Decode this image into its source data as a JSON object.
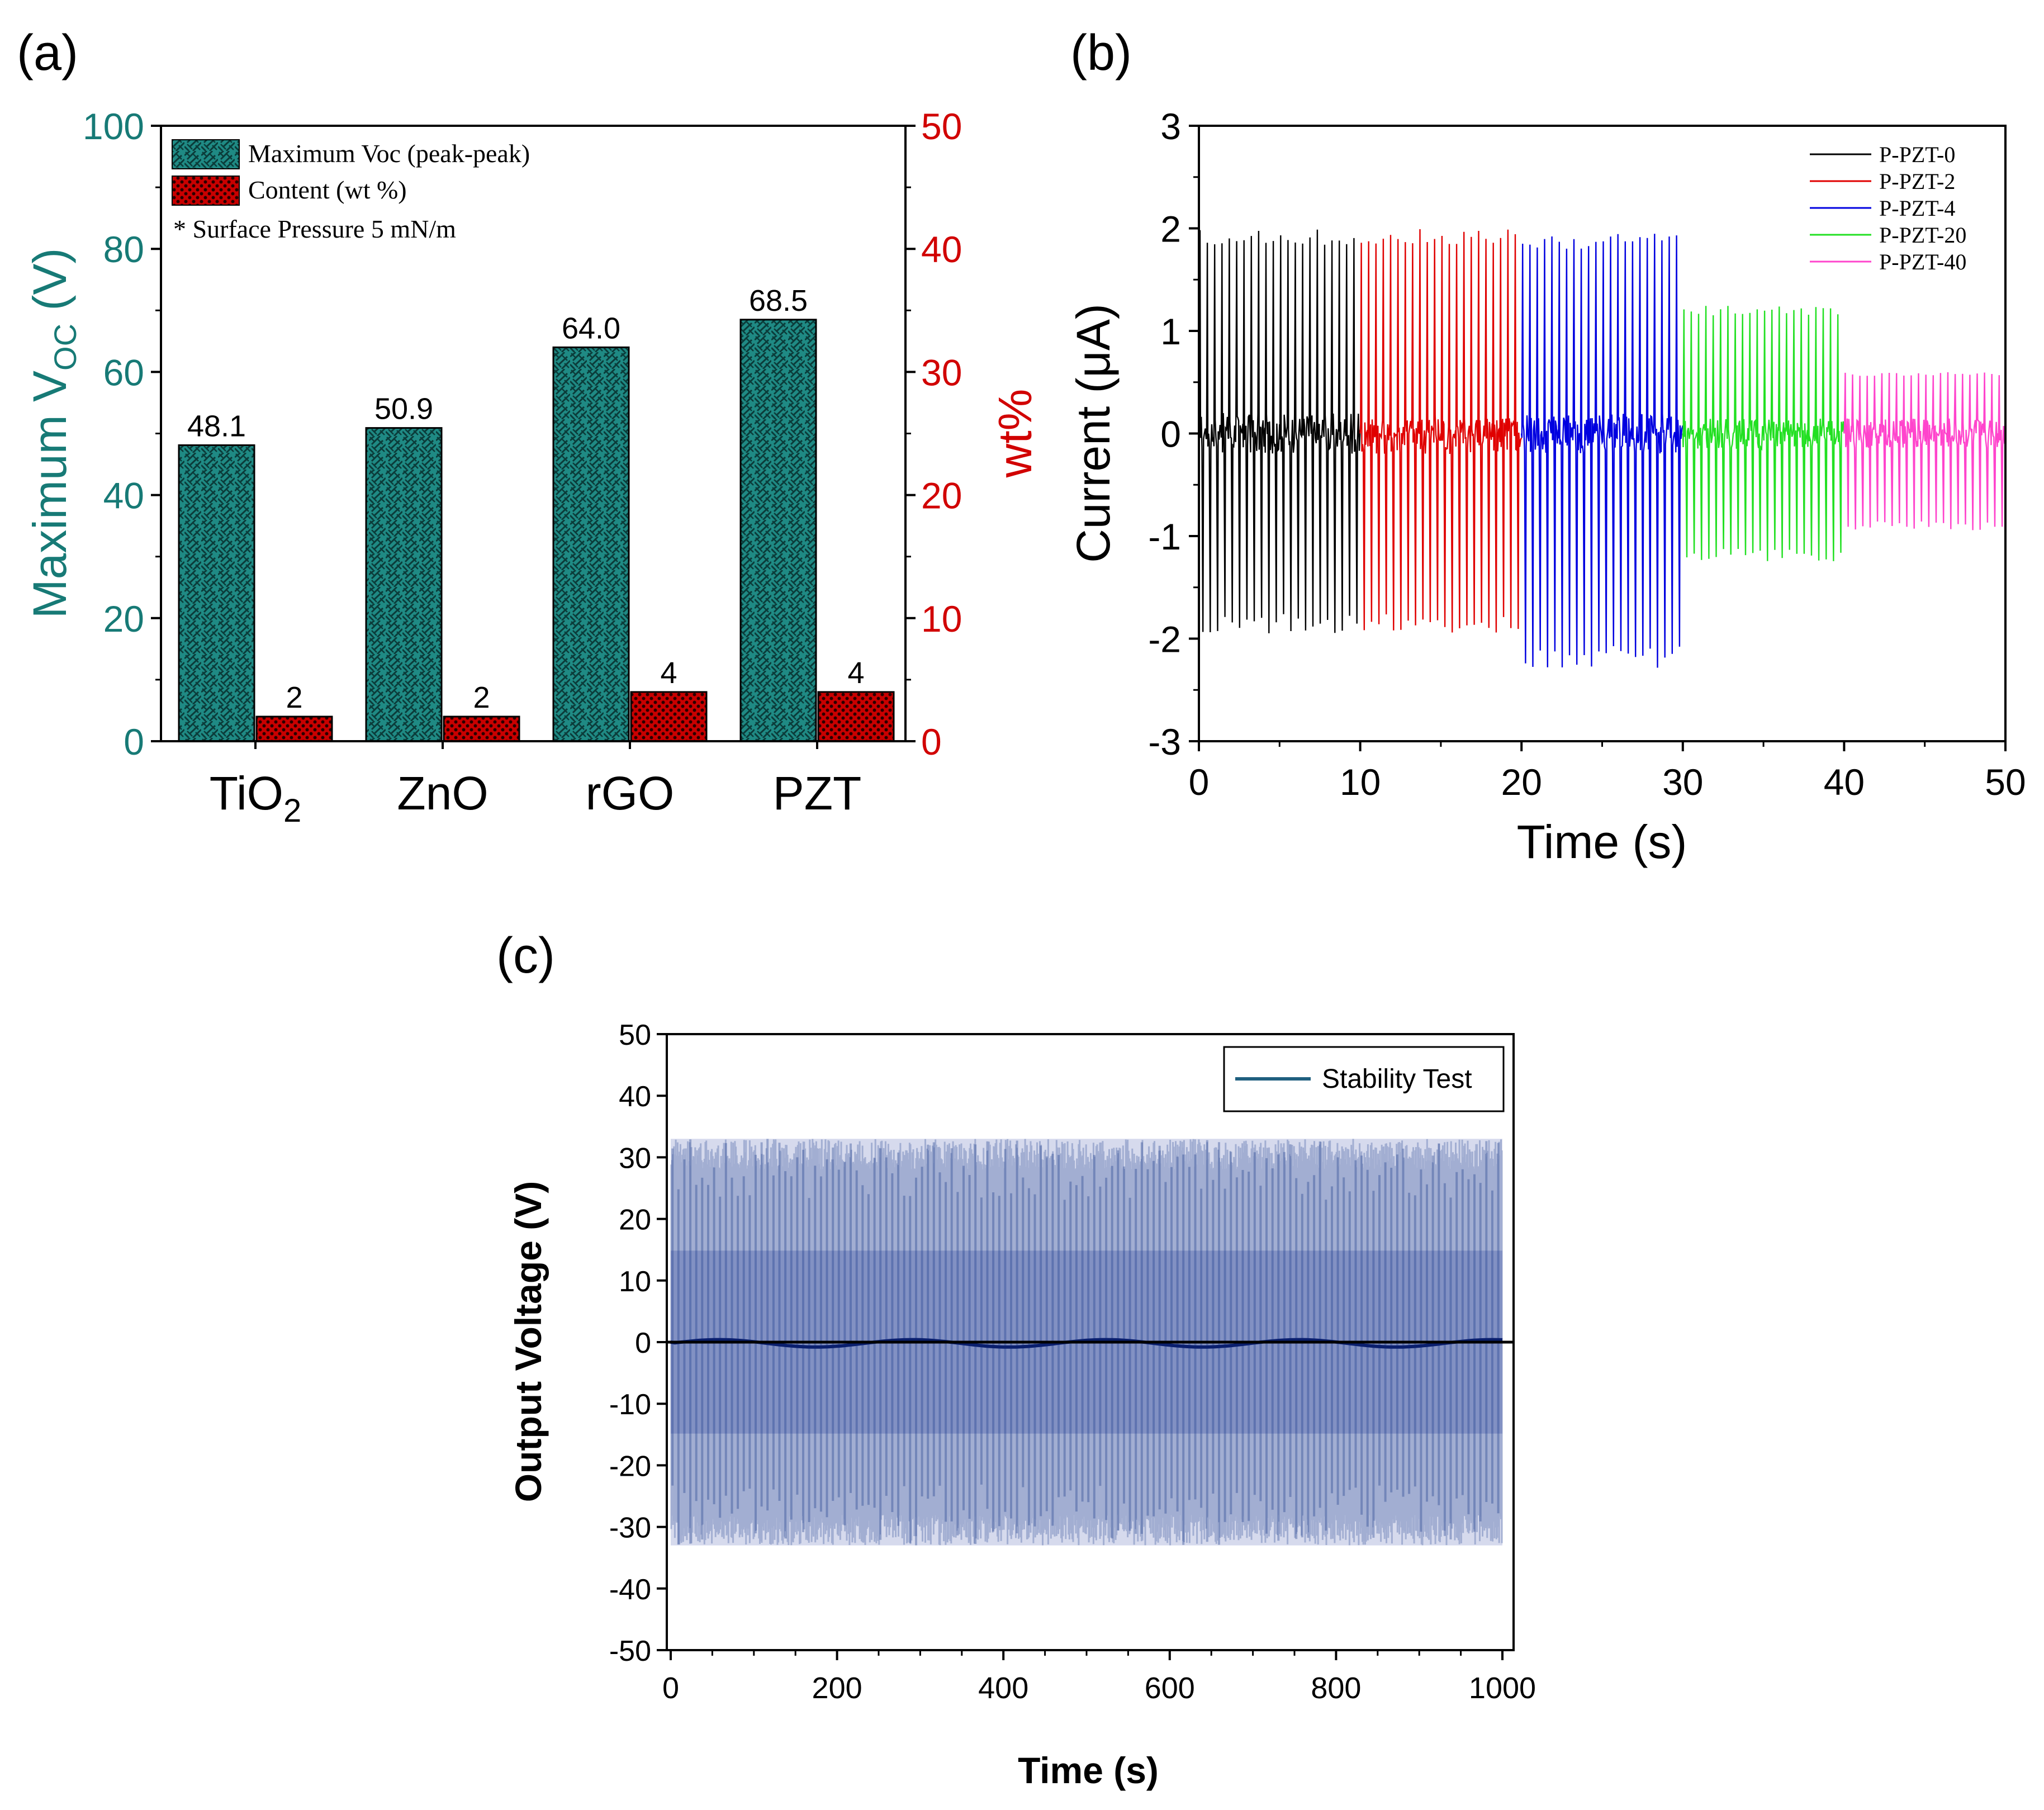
{
  "panels": {
    "a": {
      "label": "(a)"
    },
    "b": {
      "label": "(b)"
    },
    "c": {
      "label": "(c)"
    }
  },
  "colors": {
    "teal": "#177a76",
    "red": "#d10000",
    "p0": "#000000",
    "p2": "#e00000",
    "p4": "#0000e0",
    "p20": "#22e022",
    "p40": "#ff44cc",
    "stability": "#1e3c8c",
    "stabilityLegend": "#1f5f7f"
  },
  "chart_data": [
    {
      "id": "a",
      "type": "bar",
      "categories": [
        "TiO",
        "ZnO",
        "rGO",
        "PZT"
      ],
      "category_subscripts": [
        "2",
        "",
        "",
        ""
      ],
      "series": [
        {
          "name": "Maximum Voc (peak-peak)",
          "axis": "left",
          "values": [
            48.1,
            50.9,
            64.0,
            68.5
          ],
          "value_labels": [
            "48.1",
            "50.9",
            "64.0",
            "68.5"
          ]
        },
        {
          "name": "Content (wt %)",
          "axis": "right",
          "values": [
            2,
            2,
            4,
            4
          ],
          "value_labels": [
            "2",
            "2",
            "4",
            "4"
          ]
        }
      ],
      "ylabel_left": "Maximum V",
      "ylabel_left_subscript": "OC",
      "ylabel_left_unit": " (V)",
      "ylabel_right": "wt%",
      "ylim_left": [
        0,
        100
      ],
      "ylim_right": [
        0,
        50
      ],
      "yticks_left": [
        "0",
        "20",
        "40",
        "60",
        "80",
        "100"
      ],
      "yticks_right": [
        "0",
        "10",
        "20",
        "30",
        "40",
        "50"
      ],
      "annotation": "* Surface Pressure 5 mN/m",
      "legend_position": "top-left"
    },
    {
      "id": "b",
      "type": "line",
      "xlabel": "Time (s)",
      "ylabel": "Current (μA)",
      "xlim": [
        0,
        50
      ],
      "ylim": [
        -3,
        3
      ],
      "xticks": [
        "0",
        "10",
        "20",
        "30",
        "40",
        "50"
      ],
      "yticks": [
        "-3",
        "-2",
        "-1",
        "0",
        "1",
        "2",
        "3"
      ],
      "legend_position": "top-right",
      "series": [
        {
          "name": "P-PZT-0",
          "t_range": [
            0,
            10
          ],
          "peak_pos": 2.0,
          "peak_neg": -1.95,
          "cycles": 22
        },
        {
          "name": "P-PZT-2",
          "t_range": [
            10,
            20
          ],
          "peak_pos": 2.0,
          "peak_neg": -1.95,
          "cycles": 22
        },
        {
          "name": "P-PZT-4",
          "t_range": [
            20,
            30
          ],
          "peak_pos": 1.95,
          "peak_neg": -2.3,
          "cycles": 22
        },
        {
          "name": "P-PZT-20",
          "t_range": [
            30,
            40
          ],
          "peak_pos": 1.25,
          "peak_neg": -1.25,
          "cycles": 22
        },
        {
          "name": "P-PZT-40",
          "t_range": [
            40,
            50
          ],
          "peak_pos": 0.6,
          "peak_neg": -0.95,
          "cycles": 22
        }
      ]
    },
    {
      "id": "c",
      "type": "line",
      "xlabel": "Time (s)",
      "ylabel": "Output Voltage (V)",
      "xlim": [
        0,
        1000
      ],
      "ylim": [
        -50,
        50
      ],
      "xticks": [
        "0",
        "200",
        "400",
        "600",
        "800",
        "1000"
      ],
      "yticks": [
        "-50",
        "-40",
        "-30",
        "-20",
        "-10",
        "0",
        "10",
        "20",
        "30",
        "40",
        "50"
      ],
      "legend_position": "top-right",
      "series": [
        {
          "name": "Stability Test",
          "t_range": [
            0,
            1000
          ],
          "peak_pos": 33,
          "peak_neg": -33
        }
      ]
    }
  ]
}
